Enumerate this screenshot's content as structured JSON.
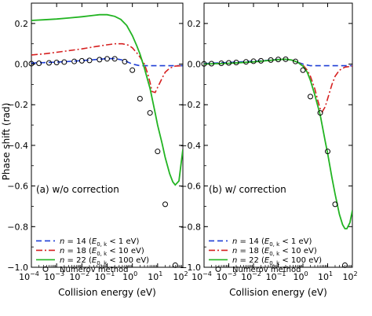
{
  "chart_data": {
    "type": "line",
    "shared": {
      "xlabel": "Collision energy (eV)",
      "ylabel": "Phase shift (rad)",
      "xscale": "log",
      "xlim": [
        0.0001,
        100
      ],
      "ylim": [
        -1.0,
        0.3
      ],
      "x_ticks": [
        0.0001,
        0.001,
        0.01,
        0.1,
        1,
        10,
        100
      ],
      "x_tick_labels": [
        {
          "base": "10",
          "exp": "−4"
        },
        {
          "base": "10",
          "exp": "−3"
        },
        {
          "base": "10",
          "exp": "−2"
        },
        {
          "base": "10",
          "exp": "−1"
        },
        {
          "base": "10",
          "exp": "0"
        },
        {
          "base": "10",
          "exp": "1"
        },
        {
          "base": "10",
          "exp": "2"
        }
      ],
      "y_ticks": [
        0.2,
        0.0,
        -0.2,
        -0.4,
        -0.6,
        -0.8,
        -1.0
      ],
      "y_tick_labels": [
        "0.2",
        "0.0",
        "−0.2",
        "−0.4",
        "−0.6",
        "−0.8",
        "−1.0"
      ],
      "legend_position": "bottom-left",
      "legend": [
        {
          "n": "14",
          "cond": "< 1 eV",
          "style": "dashed",
          "color": "#1f3fd6"
        },
        {
          "n": "18",
          "cond": "< 10 eV",
          "style": "dashdot",
          "color": "#d62020"
        },
        {
          "n": "22",
          "cond": "< 100 eV",
          "style": "solid",
          "color": "#22b422"
        },
        {
          "label": "Numerov method",
          "style": "marker",
          "color": "#000000"
        }
      ],
      "legend_symbols": {
        "n": "n",
        "eq": " = ",
        "e": "E",
        "sub": "0, k"
      }
    },
    "panels": [
      {
        "label": "(a) w/o correction",
        "series": [
          {
            "key": "n14",
            "x": [
              0.0001,
              0.0003,
              0.001,
              0.003,
              0.01,
              0.03,
              0.1,
              0.2,
              0.35,
              0.6,
              1,
              2,
              5,
              10,
              30,
              100
            ],
            "y": [
              0.005,
              0.007,
              0.01,
              0.013,
              0.017,
              0.022,
              0.027,
              0.027,
              0.022,
              0.012,
              0.0,
              -0.008,
              -0.008,
              -0.008,
              -0.008,
              -0.008
            ]
          },
          {
            "key": "n18",
            "x": [
              0.0001,
              0.0003,
              0.001,
              0.003,
              0.01,
              0.03,
              0.1,
              0.2,
              0.4,
              0.7,
              1,
              1.5,
              2,
              3,
              4,
              5,
              6,
              8,
              10,
              15,
              20,
              30,
              50,
              100
            ],
            "y": [
              0.045,
              0.05,
              0.058,
              0.066,
              0.075,
              0.085,
              0.095,
              0.1,
              0.1,
              0.093,
              0.08,
              0.055,
              0.035,
              0.0,
              -0.045,
              -0.09,
              -0.135,
              -0.14,
              -0.115,
              -0.07,
              -0.04,
              -0.02,
              -0.01,
              -0.008
            ]
          },
          {
            "key": "n22",
            "x": [
              0.0001,
              0.0003,
              0.001,
              0.003,
              0.01,
              0.03,
              0.05,
              0.1,
              0.2,
              0.35,
              0.6,
              1,
              1.5,
              2,
              3,
              5,
              8,
              10,
              15,
              20,
              30,
              40,
              50,
              70,
              100
            ],
            "y": [
              0.215,
              0.218,
              0.222,
              0.227,
              0.233,
              0.24,
              0.243,
              0.243,
              0.235,
              0.22,
              0.19,
              0.14,
              0.09,
              0.05,
              -0.02,
              -0.12,
              -0.24,
              -0.3,
              -0.39,
              -0.46,
              -0.54,
              -0.58,
              -0.595,
              -0.575,
              -0.42
            ]
          },
          {
            "key": "numerov",
            "x": [
              0.0001,
              0.0002,
              0.0005,
              0.001,
              0.002,
              0.005,
              0.01,
              0.02,
              0.05,
              0.1,
              0.2,
              0.5,
              1,
              2,
              5,
              10,
              20,
              50
            ],
            "y": [
              0.002,
              0.004,
              0.006,
              0.008,
              0.01,
              0.013,
              0.016,
              0.018,
              0.022,
              0.026,
              0.026,
              0.012,
              -0.03,
              -0.17,
              -0.24,
              -0.43,
              -0.69,
              -0.99
            ]
          }
        ]
      },
      {
        "label": "(b) w/ correction",
        "series": [
          {
            "key": "n14",
            "x": [
              0.0001,
              0.0003,
              0.001,
              0.003,
              0.01,
              0.03,
              0.1,
              0.2,
              0.35,
              0.6,
              1,
              2,
              5,
              10,
              30,
              100
            ],
            "y": [
              0.003,
              0.005,
              0.008,
              0.011,
              0.014,
              0.018,
              0.023,
              0.023,
              0.02,
              0.01,
              0.0,
              -0.008,
              -0.008,
              -0.008,
              -0.008,
              -0.008
            ]
          },
          {
            "key": "n18",
            "x": [
              0.0001,
              0.0003,
              0.001,
              0.003,
              0.01,
              0.03,
              0.1,
              0.2,
              0.35,
              0.6,
              1,
              1.5,
              2,
              3,
              4,
              5,
              6,
              8,
              10,
              15,
              20,
              30,
              50,
              100
            ],
            "y": [
              0.0,
              0.002,
              0.004,
              0.007,
              0.011,
              0.016,
              0.022,
              0.024,
              0.02,
              0.01,
              -0.005,
              -0.03,
              -0.06,
              -0.12,
              -0.18,
              -0.22,
              -0.235,
              -0.21,
              -0.17,
              -0.1,
              -0.06,
              -0.03,
              -0.015,
              -0.01
            ]
          },
          {
            "key": "n22",
            "x": [
              0.0001,
              0.0003,
              0.001,
              0.003,
              0.01,
              0.03,
              0.1,
              0.2,
              0.35,
              0.6,
              1,
              1.5,
              2,
              3,
              5,
              8,
              10,
              15,
              20,
              30,
              40,
              50,
              60,
              80,
              100
            ],
            "y": [
              0.0,
              0.002,
              0.004,
              0.007,
              0.011,
              0.016,
              0.022,
              0.024,
              0.02,
              0.01,
              -0.01,
              -0.04,
              -0.08,
              -0.15,
              -0.25,
              -0.38,
              -0.44,
              -0.56,
              -0.64,
              -0.74,
              -0.79,
              -0.81,
              -0.81,
              -0.78,
              -0.72
            ]
          },
          {
            "key": "numerov",
            "x": [
              0.0001,
              0.0002,
              0.0005,
              0.001,
              0.002,
              0.005,
              0.01,
              0.02,
              0.05,
              0.1,
              0.2,
              0.5,
              1,
              2,
              5,
              10,
              20,
              50
            ],
            "y": [
              0.001,
              0.002,
              0.004,
              0.006,
              0.008,
              0.011,
              0.014,
              0.016,
              0.02,
              0.023,
              0.024,
              0.013,
              -0.03,
              -0.16,
              -0.24,
              -0.43,
              -0.69,
              -0.99
            ]
          }
        ]
      }
    ]
  }
}
